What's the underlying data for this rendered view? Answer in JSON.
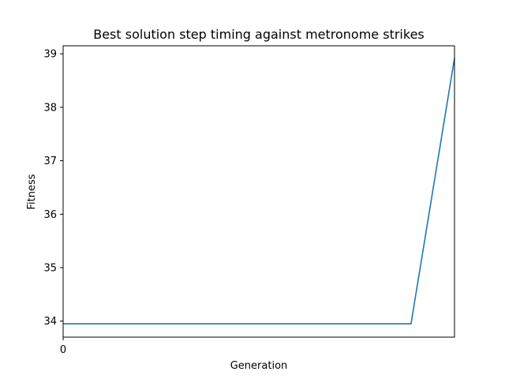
{
  "chart_data": {
    "type": "line",
    "title": "Best solution step timing against metronome strikes",
    "xlabel": "Generation",
    "ylabel": "Fitness",
    "xlim": [
      0,
      9
    ],
    "ylim": [
      33.7,
      39.15
    ],
    "x_ticks": [
      0
    ],
    "y_ticks": [
      34,
      35,
      36,
      37,
      38,
      39
    ],
    "grid": false,
    "legend": "none",
    "series": [
      {
        "color": "#1f77b4",
        "x": [
          0,
          1,
          2,
          3,
          4,
          5,
          6,
          7,
          8,
          9
        ],
        "y": [
          33.95,
          33.95,
          33.95,
          33.95,
          33.95,
          33.95,
          33.95,
          33.95,
          33.95,
          38.92
        ]
      }
    ]
  }
}
